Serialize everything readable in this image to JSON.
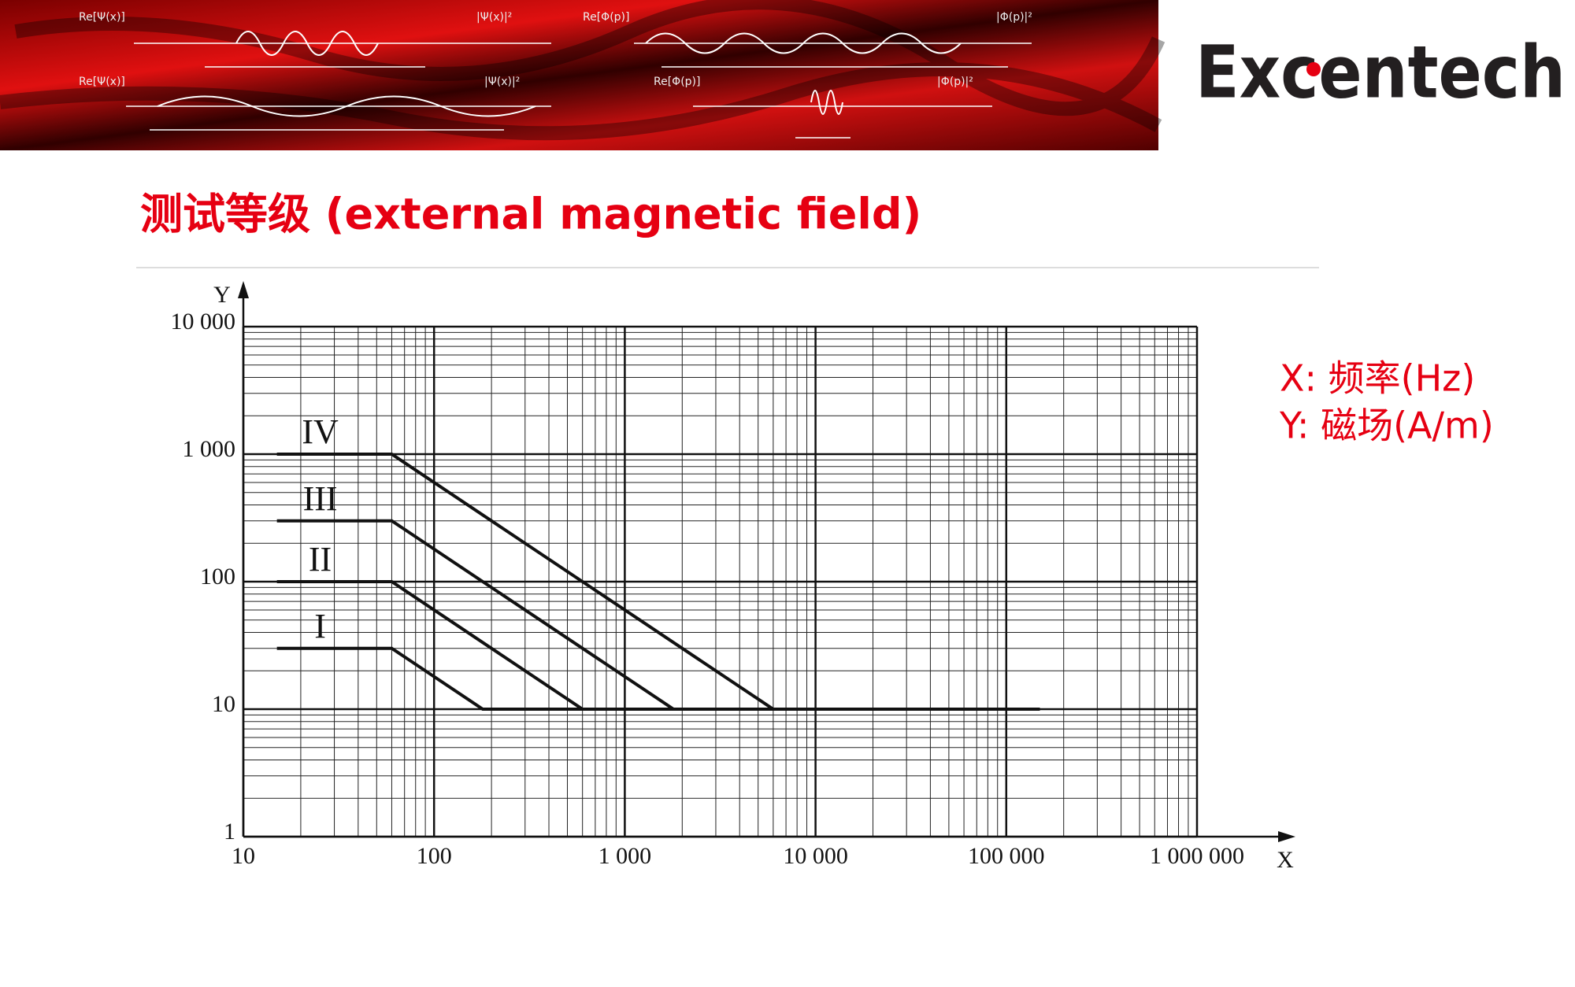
{
  "header": {
    "logo": "Excentech"
  },
  "banner": {
    "labels": [
      "Re[Ψ(x)]",
      "|Ψ(x)|²",
      "Re[Φ(p)]",
      "|Φ(p)|²",
      "Re[Ψ(x)]",
      "|Ψ(x)|²",
      "Re[Φ(p)]",
      "|Φ(p)|²"
    ]
  },
  "chart_data": {
    "type": "line",
    "title": "测试等级 (external magnetic field)",
    "x_label": "X",
    "y_label": "Y",
    "annotations": [
      "X: 频率(Hz)",
      "Y: 磁场(A/m)"
    ],
    "xscale": "log",
    "yscale": "log",
    "grid": true,
    "minor_grid": true,
    "xlim": [
      10,
      1000000
    ],
    "ylim": [
      1,
      10000
    ],
    "xticks": [
      10,
      100,
      {
        "value": 1000,
        "label": "1 000"
      },
      {
        "value": 10000,
        "label": "10 000"
      },
      {
        "value": 100000,
        "label": "100 000"
      },
      {
        "value": 1000000,
        "label": "1 000 000"
      }
    ],
    "yticks": [
      1,
      10,
      100,
      {
        "value": 1000,
        "label": "1 000"
      },
      {
        "value": 10000,
        "label": "10 000"
      }
    ],
    "series": [
      {
        "name": "I",
        "color": "#111111",
        "x": [
          15,
          60,
          180,
          150000
        ],
        "values": [
          30,
          30,
          10,
          10
        ]
      },
      {
        "name": "II",
        "color": "#111111",
        "x": [
          15,
          60,
          600,
          150000
        ],
        "values": [
          100,
          100,
          10,
          10
        ]
      },
      {
        "name": "III",
        "color": "#111111",
        "x": [
          15,
          60,
          1800,
          150000
        ],
        "values": [
          300,
          300,
          10,
          10
        ]
      },
      {
        "name": "IV",
        "color": "#111111",
        "x": [
          15,
          60,
          6000,
          150000
        ],
        "values": [
          1000,
          1000,
          10,
          10
        ]
      }
    ]
  }
}
